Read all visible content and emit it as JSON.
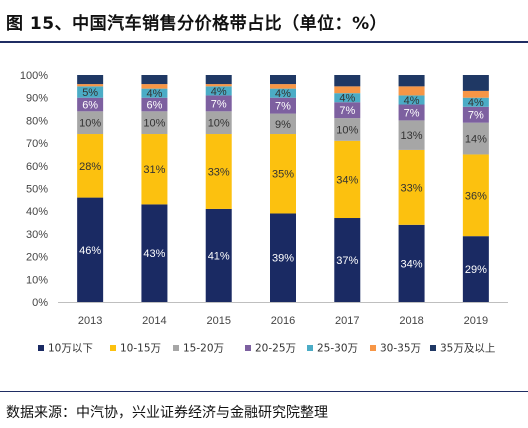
{
  "header": {
    "title": "图 15、中国汽车销售分价格带占比（单位：%）"
  },
  "footer": {
    "source": "数据来源：中汽协，兴业证券经济与金融研究院整理"
  },
  "chart_data": {
    "type": "bar",
    "stacked": true,
    "categories": [
      "2013",
      "2014",
      "2015",
      "2016",
      "2017",
      "2018",
      "2019"
    ],
    "ylim": [
      0,
      100
    ],
    "yticks": [
      "0%",
      "10%",
      "20%",
      "30%",
      "40%",
      "50%",
      "60%",
      "70%",
      "80%",
      "90%",
      "100%"
    ],
    "legend_position": "bottom",
    "series": [
      {
        "name": "10万以下",
        "color": "#1a2a63",
        "label_color": "#ffffff",
        "values": [
          46,
          43,
          41,
          39,
          37,
          34,
          29
        ],
        "labels": [
          "46%",
          "43%",
          "41%",
          "39%",
          "37%",
          "34%",
          "29%"
        ]
      },
      {
        "name": "10-15万",
        "color": "#fcc10f",
        "label_color": "#333333",
        "values": [
          28,
          31,
          33,
          35,
          34,
          33,
          36
        ],
        "labels": [
          "28%",
          "31%",
          "33%",
          "35%",
          "34%",
          "33%",
          "36%"
        ]
      },
      {
        "name": "15-20万",
        "color": "#a6a6a6",
        "label_color": "#333333",
        "values": [
          10,
          10,
          10,
          9,
          10,
          13,
          14
        ],
        "labels": [
          "10%",
          "10%",
          "10%",
          "9%",
          "10%",
          "13%",
          "14%"
        ]
      },
      {
        "name": "20-25万",
        "color": "#7d60a0",
        "label_color": "#ffffff",
        "values": [
          6,
          6,
          7,
          7,
          7,
          7,
          7
        ],
        "labels": [
          "6%",
          "6%",
          "7%",
          "7%",
          "7%",
          "7%",
          "7%"
        ]
      },
      {
        "name": "25-30万",
        "color": "#4bacc6",
        "label_color": "#333333",
        "values": [
          5,
          4,
          4,
          4,
          4,
          4,
          4
        ],
        "labels": [
          "5%",
          "4%",
          "4%",
          "4%",
          "4%",
          "4%",
          "4%"
        ]
      },
      {
        "name": "30-35万",
        "color": "#f79646",
        "label_color": "#333333",
        "values": [
          1,
          2,
          1,
          2,
          3,
          4,
          3
        ],
        "labels": [
          "",
          "",
          "",
          "",
          "",
          "",
          ""
        ]
      },
      {
        "name": "35万及以上",
        "color": "#1f3864",
        "label_color": "#ffffff",
        "values": [
          4,
          4,
          4,
          4,
          5,
          5,
          7
        ],
        "labels": [
          "",
          "",
          "",
          "",
          "",
          "",
          ""
        ]
      }
    ]
  }
}
